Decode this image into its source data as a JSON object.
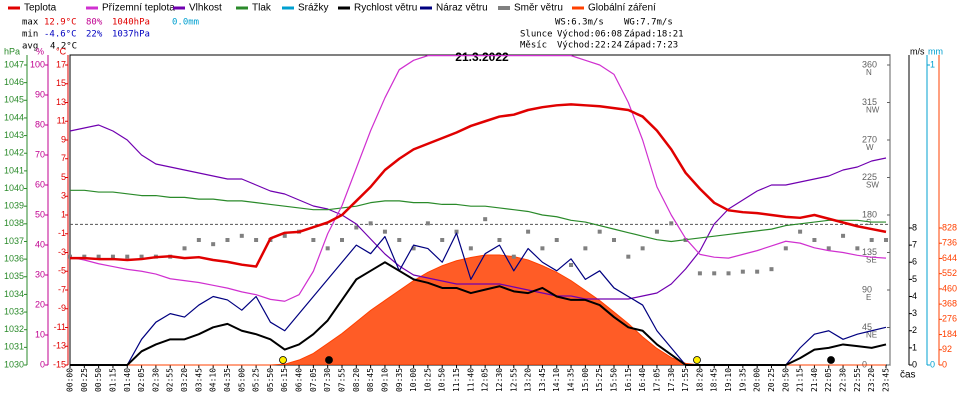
{
  "chart_data": {
    "type": "line",
    "title": "21.3.2022",
    "x_label": "čas",
    "categories": [
      "00:00",
      "00:25",
      "00:50",
      "01:15",
      "01:40",
      "02:05",
      "02:30",
      "02:55",
      "03:20",
      "03:45",
      "04:10",
      "04:35",
      "05:00",
      "05:25",
      "05:50",
      "06:15",
      "06:40",
      "07:05",
      "07:30",
      "07:55",
      "08:20",
      "08:45",
      "09:10",
      "09:35",
      "10:00",
      "10:25",
      "10:50",
      "11:15",
      "11:40",
      "12:05",
      "12:30",
      "12:55",
      "13:20",
      "13:45",
      "14:10",
      "14:35",
      "15:00",
      "15:25",
      "15:50",
      "16:15",
      "16:40",
      "17:05",
      "17:30",
      "17:55",
      "18:20",
      "18:45",
      "19:10",
      "19:35",
      "20:00",
      "20:25",
      "20:50",
      "21:15",
      "21:40",
      "22:05",
      "22:30",
      "22:55",
      "23:20",
      "23:45"
    ],
    "axes": [
      {
        "label": "hPa",
        "color": "#2a8a2a",
        "lim": [
          1030,
          1047
        ],
        "ticks": [
          1030,
          1031,
          1032,
          1033,
          1034,
          1035,
          1036,
          1037,
          1038,
          1039,
          1040,
          1041,
          1042,
          1043,
          1044,
          1045,
          1046,
          1047
        ]
      },
      {
        "label": "%",
        "color": "#c00090",
        "lim": [
          0,
          100
        ],
        "ticks": [
          0,
          10,
          20,
          30,
          40,
          50,
          60,
          70,
          80,
          90,
          100
        ]
      },
      {
        "label": "°C",
        "color": "#e00000",
        "lim": [
          -15,
          17
        ],
        "ticks": [
          -15,
          -13,
          -11,
          -9,
          -7,
          -5,
          -3,
          -1,
          1,
          3,
          5,
          7,
          9,
          11,
          13,
          15,
          17
        ]
      },
      {
        "color": "#606060",
        "lim": [
          0,
          360
        ],
        "ticks": [
          0,
          {
            "value": 45,
            "label": "45",
            "name": "NE"
          },
          {
            "value": 90,
            "label": "90",
            "name": "E"
          },
          {
            "value": 135,
            "label": "135",
            "name": "SE"
          },
          {
            "value": 180,
            "label": "180",
            "name": "S"
          },
          {
            "value": 225,
            "label": "225",
            "name": "SW"
          },
          {
            "value": 270,
            "label": "270",
            "name": "W"
          },
          {
            "value": 315,
            "label": "315",
            "name": "NW"
          },
          {
            "value": 360,
            "label": "360",
            "name": "N"
          }
        ]
      },
      {
        "label": "m/s",
        "color": "#000000",
        "lim": [
          0,
          8
        ],
        "ticks": [
          0,
          1,
          2,
          3,
          4,
          5,
          6,
          7,
          8
        ]
      },
      {
        "label": "mm",
        "color": "#00a0d0",
        "lim": [
          0,
          1
        ],
        "ticks": [
          0,
          1
        ]
      },
      {
        "color": "#ff4000",
        "lim": [
          0,
          828
        ],
        "ticks": [
          0,
          92,
          184,
          276,
          368,
          460,
          552,
          644,
          736,
          828
        ]
      }
    ],
    "series": [
      {
        "name": "Teplota",
        "color": "#e00000",
        "axis": 2,
        "values": [
          -3.6,
          -3.6,
          -3.7,
          -3.7,
          -3.8,
          -3.7,
          -3.5,
          -3.4,
          -3.6,
          -3.5,
          -3.8,
          -4.0,
          -4.3,
          -4.5,
          -1.5,
          -0.9,
          -0.8,
          -0.3,
          0.2,
          1.0,
          2.5,
          4.0,
          5.8,
          7.0,
          8.0,
          8.6,
          9.2,
          9.8,
          10.5,
          11.0,
          11.5,
          11.7,
          12.2,
          12.5,
          12.7,
          12.8,
          12.7,
          12.6,
          12.4,
          12.2,
          11.5,
          10.0,
          8.0,
          5.5,
          3.8,
          2.3,
          1.5,
          1.3,
          1.2,
          1.0,
          0.8,
          0.7,
          1.0,
          0.6,
          0.2,
          -0.2,
          -0.5,
          -0.8
        ]
      },
      {
        "name": "Přízemní teplota",
        "color": "#d030d0",
        "axis": 2,
        "values": [
          -3.5,
          -3.8,
          -4.2,
          -4.5,
          -4.8,
          -5.0,
          -5.3,
          -5.8,
          -6.0,
          -6.2,
          -6.5,
          -6.8,
          -7.2,
          -7.5,
          -8.0,
          -8.2,
          -7.5,
          -5.0,
          -1.0,
          2.0,
          6.0,
          10.0,
          13.5,
          16.5,
          17.5,
          18.0,
          18.0,
          18.0,
          18.0,
          18.0,
          18.0,
          18.0,
          18.0,
          18.0,
          18.0,
          18.0,
          17.5,
          17.0,
          16.0,
          13.0,
          9.0,
          4.0,
          1.0,
          -1.5,
          -3.2,
          -3.5,
          -3.6,
          -3.2,
          -2.8,
          -2.3,
          -1.8,
          -2.0,
          -2.5,
          -2.8,
          -3.0,
          -3.3,
          -3.5,
          -3.6
        ]
      },
      {
        "name": "Vlhkost",
        "color": "#7000b0",
        "axis": 1,
        "values": [
          78,
          79,
          80,
          78,
          75,
          70,
          67,
          66,
          65,
          64,
          63,
          62,
          62,
          60,
          58,
          57,
          55,
          53,
          52,
          50,
          47,
          42,
          37,
          33,
          30,
          29,
          28,
          27,
          27,
          27,
          27,
          26,
          25,
          24,
          23,
          23,
          22,
          22,
          22,
          22,
          23,
          24,
          27,
          32,
          38,
          47,
          52,
          55,
          58,
          60,
          60,
          61,
          62,
          63,
          65,
          66,
          68,
          69
        ]
      },
      {
        "name": "Tlak",
        "color": "#2a8a2a",
        "axis": 0,
        "values": [
          1039.9,
          1039.9,
          1039.8,
          1039.8,
          1039.7,
          1039.6,
          1039.6,
          1039.5,
          1039.5,
          1039.4,
          1039.4,
          1039.3,
          1039.3,
          1039.2,
          1039.1,
          1039.0,
          1038.9,
          1038.8,
          1038.8,
          1038.9,
          1039.0,
          1039.2,
          1039.3,
          1039.3,
          1039.2,
          1039.2,
          1039.1,
          1039.1,
          1039.0,
          1039.0,
          1038.9,
          1038.8,
          1038.7,
          1038.5,
          1038.4,
          1038.2,
          1038.1,
          1037.9,
          1037.7,
          1037.5,
          1037.3,
          1037.1,
          1037.0,
          1037.1,
          1037.2,
          1037.3,
          1037.4,
          1037.5,
          1037.6,
          1037.7,
          1037.9,
          1038.0,
          1038.1,
          1038.2,
          1038.2,
          1038.2,
          1038.1,
          1038.1
        ]
      },
      {
        "name": "Srážky",
        "color": "#00a0d0",
        "axis": 5
      },
      {
        "name": "Rychlost větru",
        "color": "#000000",
        "axis": 4,
        "values": [
          0,
          0,
          0,
          0,
          0,
          0.8,
          1.2,
          1.5,
          1.5,
          1.8,
          2.2,
          2.4,
          2.0,
          1.8,
          1.5,
          0.9,
          1.2,
          1.8,
          2.6,
          3.8,
          5.0,
          5.5,
          6.0,
          5.5,
          5.0,
          4.8,
          4.5,
          4.5,
          4.2,
          4.4,
          4.6,
          4.3,
          4.2,
          4.5,
          4.0,
          3.8,
          3.8,
          3.5,
          2.8,
          2.2,
          2.0,
          1.2,
          0.6,
          0,
          0,
          0,
          0,
          0,
          0,
          0,
          0,
          0.4,
          0.9,
          1.0,
          1.2,
          1.1,
          1.0,
          1.2
        ]
      },
      {
        "name": "Náraz větru",
        "color": "#000080",
        "axis": 4,
        "values": [
          0,
          0,
          0,
          0,
          0,
          1.5,
          2.5,
          3.0,
          2.8,
          3.5,
          4.0,
          3.8,
          3.2,
          4.0,
          2.5,
          2.0,
          3.0,
          4.0,
          5.0,
          6.0,
          7.0,
          6.5,
          7.5,
          5.5,
          7.0,
          6.8,
          6.0,
          7.7,
          5.0,
          6.5,
          7.0,
          5.5,
          6.8,
          6.0,
          5.5,
          6.2,
          5.0,
          5.5,
          4.5,
          4.0,
          3.5,
          2.0,
          1.0,
          0,
          0,
          0,
          0,
          0,
          0,
          0,
          0,
          1.0,
          1.8,
          2.0,
          1.5,
          1.8,
          2.0,
          2.2
        ]
      },
      {
        "name": "Směr větru",
        "color": "#808080",
        "axis": 3,
        "values": [
          130,
          130,
          130,
          130,
          130,
          130,
          130,
          130,
          140,
          150,
          145,
          150,
          155,
          150,
          150,
          155,
          160,
          150,
          140,
          150,
          165,
          170,
          160,
          150,
          140,
          170,
          150,
          160,
          140,
          175,
          150,
          130,
          160,
          140,
          150,
          120,
          140,
          160,
          150,
          130,
          140,
          160,
          170,
          150,
          110,
          110,
          110,
          112,
          112,
          115,
          140,
          160,
          150,
          140,
          155,
          140,
          150,
          150
        ]
      },
      {
        "name": "Globální záření",
        "color": "#ff4000",
        "axis": 6,
        "values": [
          0,
          0,
          0,
          0,
          0,
          0,
          0,
          0,
          0,
          0,
          0,
          0,
          0,
          0,
          0,
          5,
          30,
          70,
          130,
          190,
          260,
          330,
          390,
          450,
          510,
          560,
          600,
          630,
          650,
          665,
          665,
          655,
          635,
          600,
          560,
          510,
          450,
          390,
          320,
          250,
          170,
          100,
          45,
          10,
          0,
          0,
          0,
          0,
          0,
          0,
          0,
          0,
          0,
          0,
          0,
          0,
          0,
          0
        ]
      }
    ],
    "stats": {
      "max": {
        "label": "max",
        "temp": "12.9°C",
        "hum": "80%",
        "press": "1040hPa",
        "rain": "0.0mm"
      },
      "min": {
        "label": "min",
        "temp": "-4.6°C",
        "hum": "22%",
        "press": "1037hPa"
      },
      "avg": {
        "label": "avg",
        "temp": "4.2°C"
      }
    },
    "info": {
      "ws": "WS:6.3m/s",
      "wg": "WG:7.7m/s",
      "sun": "Slunce",
      "sun_rise": "Východ:06:08",
      "sun_set": "Západ:18:21",
      "moon": "Měsíc",
      "moon_rise": "Východ:22:24",
      "moon_set": "Západ:7:23"
    }
  }
}
